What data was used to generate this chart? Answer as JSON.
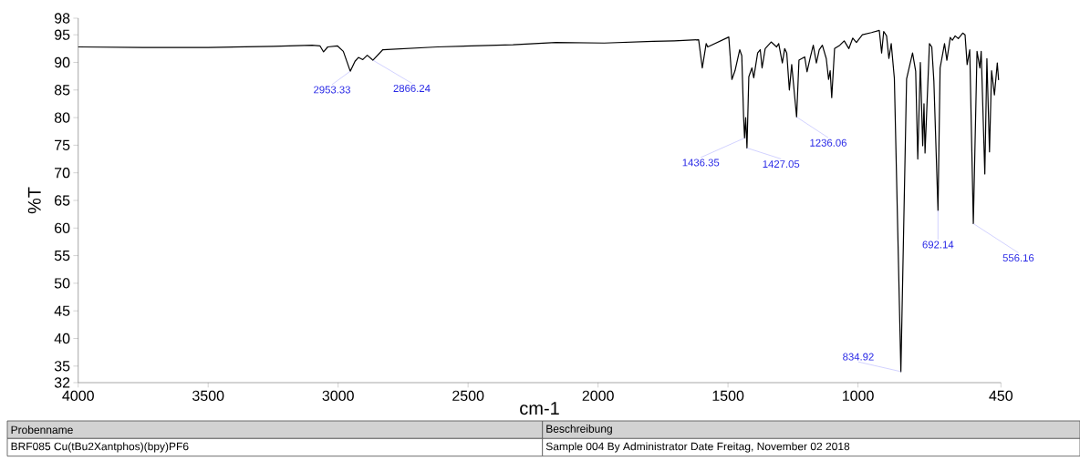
{
  "chart_data": {
    "type": "line",
    "xlabel": "cm-1",
    "ylabel": "%T",
    "color": "#000000",
    "xlim": [
      4000,
      450
    ],
    "ylim": [
      32,
      98
    ],
    "xticks": [
      4000,
      3500,
      3000,
      2500,
      2000,
      1500,
      1000,
      450
    ],
    "yticks": [
      32,
      35,
      40,
      45,
      50,
      55,
      60,
      65,
      70,
      75,
      80,
      85,
      90,
      95,
      98
    ],
    "x": [
      4000,
      3750,
      3500,
      3250,
      3100,
      3070,
      3056,
      3040,
      3003,
      2980,
      2953.33,
      2935,
      2922,
      2905,
      2888,
      2866.24,
      2828,
      2618,
      2327,
      2162,
      1976,
      1788,
      1707,
      1613,
      1599,
      1584,
      1578,
      1497,
      1485,
      1473,
      1455,
      1447,
      1440,
      1436.35,
      1432,
      1427.05,
      1420,
      1408,
      1401,
      1386,
      1376,
      1369,
      1357,
      1334,
      1313,
      1305,
      1291,
      1282,
      1274,
      1264,
      1255,
      1236.06,
      1227,
      1216,
      1205,
      1196,
      1183,
      1172,
      1160,
      1149,
      1137,
      1122,
      1113,
      1107,
      1101,
      1090,
      1070,
      1053,
      1035,
      1020,
      1006,
      983,
      948,
      918,
      909,
      901,
      890,
      881,
      872,
      860,
      834.92,
      813,
      790,
      778,
      770,
      760,
      751,
      746,
      742,
      725,
      716,
      708,
      692.14,
      684,
      667,
      658,
      645,
      637,
      626,
      614,
      597,
      588,
      580,
      570,
      556.16,
      542,
      531,
      526,
      512,
      504,
      494,
      486,
      475,
      464,
      459
    ],
    "values": [
      92.8,
      92.7,
      92.7,
      92.9,
      93.1,
      93.0,
      91.9,
      92.8,
      93.0,
      92.0,
      88.4,
      90.2,
      90.9,
      90.5,
      91.3,
      90.4,
      92.3,
      92.8,
      93.2,
      93.6,
      93.5,
      93.8,
      93.9,
      94.1,
      89.0,
      93.4,
      92.8,
      94.6,
      86.9,
      88.5,
      92.3,
      91.2,
      80.0,
      76.3,
      80.0,
      74.5,
      87.4,
      89.0,
      87.2,
      91.7,
      92.3,
      89.0,
      92.5,
      93.7,
      92.8,
      93.4,
      89.9,
      92.5,
      91.7,
      85.0,
      89.6,
      80.1,
      90.4,
      90.7,
      91.0,
      88.3,
      91.0,
      93.1,
      89.9,
      92.3,
      93.1,
      90.7,
      86.9,
      88.5,
      83.6,
      92.5,
      93.1,
      93.9,
      92.5,
      94.4,
      93.6,
      95.0,
      95.4,
      95.8,
      91.7,
      95.6,
      94.8,
      90.7,
      93.4,
      87.1,
      34.0,
      87.0,
      91.7,
      88.4,
      72.5,
      90.0,
      74.9,
      82.5,
      73.6,
      93.4,
      92.8,
      86.6,
      63.2,
      89.0,
      93.4,
      90.4,
      94.5,
      94.0,
      94.8,
      94.3,
      95.3,
      95.0,
      89.6,
      92.3,
      60.8,
      92.0,
      89.0,
      92.0,
      69.8,
      90.7,
      73.8,
      88.5,
      84.1,
      89.9,
      86.8
    ],
    "annotations": [
      {
        "text": "2953.33",
        "x": 2953.33,
        "y": 88.4
      },
      {
        "text": "2866.24",
        "x": 2866.24,
        "y": 90.4
      },
      {
        "text": "1436.35",
        "x": 1436.35,
        "y": 76.3
      },
      {
        "text": "1427.05",
        "x": 1427.05,
        "y": 74.5
      },
      {
        "text": "1236.06",
        "x": 1236.06,
        "y": 80.1
      },
      {
        "text": "834.92",
        "x": 834.92,
        "y": 34.0
      },
      {
        "text": "692.14",
        "x": 692.14,
        "y": 63.2
      },
      {
        "text": "556.16",
        "x": 556.16,
        "y": 60.8
      },
      "Probenname",
      "Beschreibung",
      "BRF085 Cu(tBu2Xantphos)(bpy)PF6",
      "Sample 004 By Administrator Date Freitag, November 02 2018"
    ]
  }
}
